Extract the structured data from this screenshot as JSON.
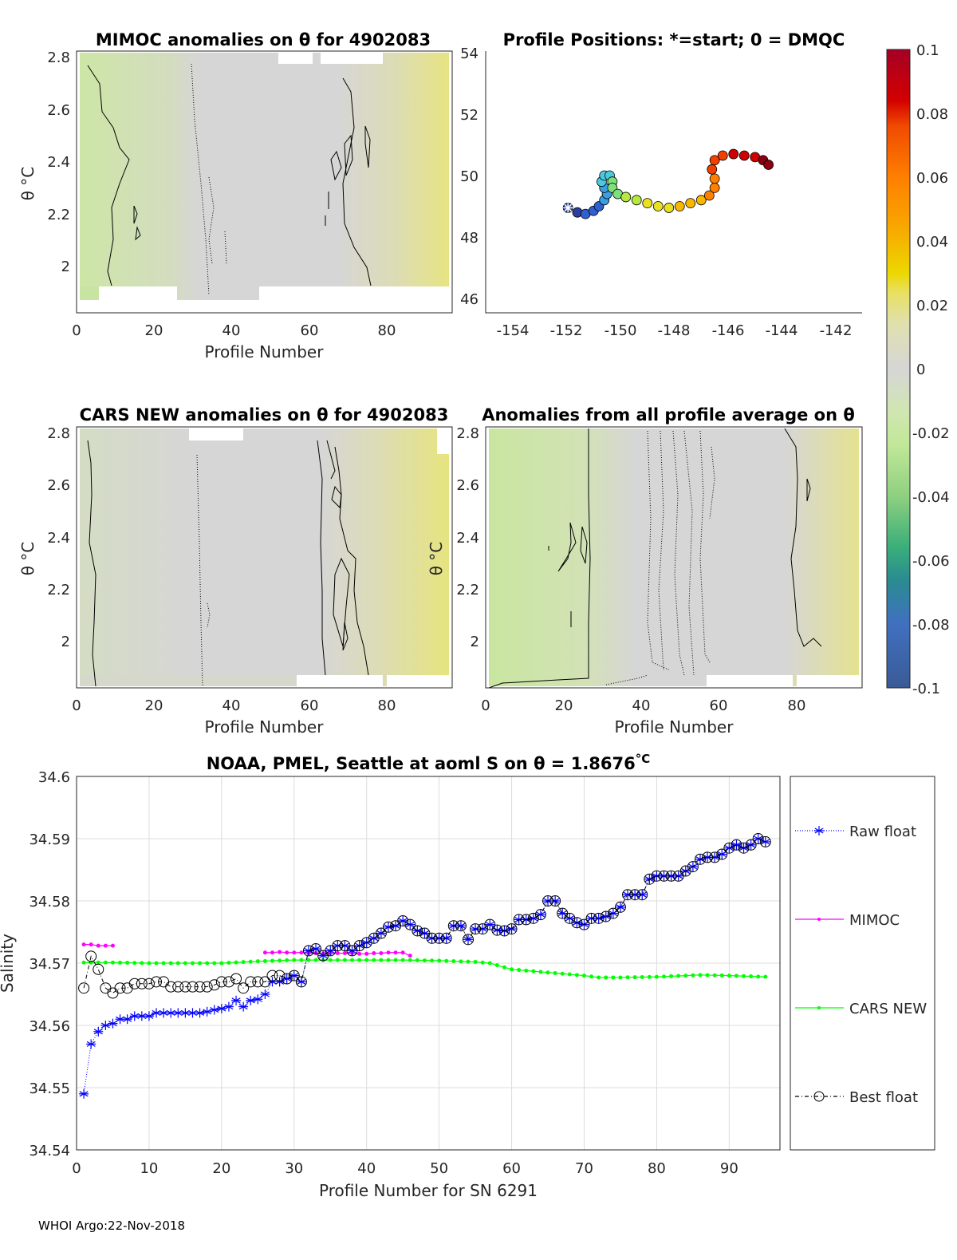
{
  "panels": {
    "mimoc": {
      "title": "MIMOC anomalies on θ  for 4902083",
      "xlabel": "Profile Number",
      "ylabel": "θ °C"
    },
    "positions": {
      "title": "Profile Positions: *=start; 0 = DMQC"
    },
    "cars": {
      "title": "CARS NEW anomalies on θ for 4902083",
      "xlabel": "Profile Number",
      "ylabel": "θ °C"
    },
    "allavg": {
      "title": "Anomalies from all profile average on θ",
      "xlabel": "Profile Number",
      "ylabel": "θ °C"
    }
  },
  "axes": {
    "profile_ticks": [
      "0",
      "20",
      "40",
      "60",
      "80"
    ],
    "theta_ticks": [
      "2.8",
      "2.6",
      "2.4",
      "2.2",
      "2"
    ],
    "lon_ticks": [
      "-154",
      "-152",
      "-150",
      "-148",
      "-146",
      "-144",
      "-142"
    ],
    "lat_ticks": [
      "54",
      "52",
      "50",
      "48",
      "46"
    ]
  },
  "colorbar": {
    "ticks": [
      "0.1",
      "0.08",
      "0.06",
      "0.04",
      "0.02",
      "0",
      "-0.02",
      "-0.04",
      "-0.06",
      "-0.08",
      "-0.1"
    ],
    "colors": {
      "max": "#a50026",
      "orange": "#ff7f00",
      "yellow": "#ecd800",
      "zero": "#d6d6d6",
      "lightgreen": "#c0e898",
      "green": "#3aae7a",
      "blue": "#4070c0",
      "min": "#3a5a96"
    }
  },
  "chart_data": [
    {
      "type": "scatter",
      "title": "Profile Positions: *=start; 0 = DMQC",
      "xlim": [
        -155,
        -141
      ],
      "ylim": [
        45.5,
        54
      ],
      "lon": [
        -151.95,
        -151.6,
        -151.3,
        -151.0,
        -150.8,
        -150.6,
        -150.5,
        -150.6,
        -150.7,
        -150.6,
        -150.4,
        -150.3,
        -150.3,
        -150.1,
        -149.8,
        -149.4,
        -149.0,
        -148.6,
        -148.2,
        -147.8,
        -147.4,
        -147.0,
        -146.7,
        -146.5,
        -146.5,
        -146.6,
        -146.5,
        -146.2,
        -145.8,
        -145.4,
        -145.0,
        -144.7,
        -144.5
      ],
      "lat": [
        48.95,
        48.8,
        48.75,
        48.85,
        49.0,
        49.2,
        49.4,
        49.6,
        49.8,
        50.0,
        50.0,
        49.8,
        49.6,
        49.4,
        49.3,
        49.2,
        49.1,
        49.0,
        48.95,
        49.0,
        49.1,
        49.2,
        49.35,
        49.6,
        49.9,
        50.2,
        50.5,
        50.65,
        50.7,
        50.65,
        50.6,
        50.5,
        50.35
      ]
    },
    {
      "type": "line",
      "title": "NOAA, PMEL, Seattle at aoml S on θ = 1.8676",
      "title_unit": "°C",
      "xlabel": "Profile Number for SN 6291",
      "ylabel": "Salinity",
      "xlim": [
        0,
        97
      ],
      "ylim": [
        34.54,
        34.6
      ],
      "xticks": [
        "0",
        "10",
        "20",
        "30",
        "40",
        "50",
        "60",
        "70",
        "80",
        "90"
      ],
      "yticks": [
        "34.6",
        "34.59",
        "34.58",
        "34.57",
        "34.56",
        "34.55",
        "34.54"
      ],
      "grid": true,
      "legend_placement": "outside-right",
      "series": [
        {
          "name": "Raw float",
          "color": "#0000ff",
          "x_start": 1,
          "values": [
            34.549,
            34.557,
            34.559,
            34.56,
            34.5603,
            34.561,
            34.561,
            34.5615,
            34.5615,
            34.5615,
            34.562,
            34.562,
            34.562,
            34.562,
            34.562,
            34.562,
            34.562,
            34.5622,
            34.5625,
            34.5627,
            34.563,
            34.564,
            34.563,
            34.564,
            34.5642,
            34.565,
            34.567,
            34.567,
            34.5675,
            34.568,
            34.567,
            34.572,
            34.5723,
            34.5712,
            34.572,
            34.5728,
            34.5728,
            34.572,
            34.5728,
            34.5733,
            34.574,
            34.5748,
            34.5758,
            34.576,
            34.5768,
            34.5762,
            34.5752,
            34.5748,
            34.574,
            34.574,
            34.574,
            34.576,
            34.576,
            34.5738,
            34.5755,
            34.5755,
            34.5762,
            34.5753,
            34.5752,
            34.5755,
            34.577,
            34.577,
            34.5772,
            34.5778,
            34.58,
            34.58,
            34.578,
            34.5772,
            34.5765,
            34.5762,
            34.5772,
            34.5772,
            34.5775,
            34.578,
            34.579,
            34.581,
            34.581,
            34.581,
            34.5835,
            34.584,
            34.584,
            34.584,
            34.584,
            34.5848,
            34.5855,
            34.5867,
            34.587,
            34.587,
            34.5875,
            34.5885,
            34.589,
            34.5885,
            34.589,
            34.59,
            34.5895
          ]
        },
        {
          "name": "MIMOC",
          "color": "#ff00ff",
          "x": [
            1,
            2,
            3,
            4,
            5,
            26,
            27,
            28,
            29,
            30,
            31,
            32,
            33,
            34,
            35,
            36,
            37,
            38,
            39,
            40,
            41,
            42,
            43,
            44,
            45,
            46
          ],
          "values": [
            34.573,
            34.573,
            34.5728,
            34.5728,
            34.5728,
            34.5717,
            34.5717,
            34.5718,
            34.5717,
            34.5717,
            34.5717,
            34.5716,
            34.5716,
            34.5715,
            34.5716,
            34.5716,
            34.5716,
            34.5716,
            34.5715,
            34.5715,
            34.5716,
            34.5716,
            34.5717,
            34.5717,
            34.5717,
            34.5712
          ]
        },
        {
          "name": "CARS NEW",
          "color": "#00ff00",
          "x": [
            1,
            5,
            10,
            15,
            20,
            25,
            30,
            35,
            40,
            45,
            50,
            55,
            57,
            60,
            65,
            70,
            72,
            75,
            80,
            86,
            90,
            95
          ],
          "values": [
            34.5701,
            34.5701,
            34.57,
            34.57,
            34.57,
            34.5703,
            34.5705,
            34.5705,
            34.5705,
            34.5705,
            34.5704,
            34.5702,
            34.57,
            34.569,
            34.5685,
            34.568,
            34.5677,
            34.5677,
            34.5678,
            34.5681,
            34.568,
            34.5678
          ]
        },
        {
          "name": "Best float",
          "color": "#000000",
          "x_start": 1,
          "values": [
            34.566,
            34.5711,
            34.569,
            34.566,
            34.5652,
            34.566,
            34.566,
            34.5667,
            34.5667,
            34.5667,
            34.567,
            34.567,
            34.5662,
            34.5662,
            34.5662,
            34.5662,
            34.5662,
            34.5662,
            34.5665,
            34.567,
            34.567,
            34.5675,
            34.566,
            34.567,
            34.567,
            34.567,
            34.568,
            34.568,
            34.5675,
            34.568,
            34.567,
            34.572,
            34.5723,
            34.5712,
            34.572,
            34.5728,
            34.5728,
            34.572,
            34.5728,
            34.5733,
            34.574,
            34.5748,
            34.5758,
            34.576,
            34.5768,
            34.5762,
            34.5752,
            34.5748,
            34.574,
            34.574,
            34.574,
            34.576,
            34.576,
            34.5738,
            34.5755,
            34.5755,
            34.5762,
            34.5753,
            34.5752,
            34.5755,
            34.577,
            34.577,
            34.5772,
            34.5778,
            34.58,
            34.58,
            34.578,
            34.5772,
            34.5765,
            34.5762,
            34.5772,
            34.5772,
            34.5775,
            34.578,
            34.579,
            34.581,
            34.581,
            34.581,
            34.5835,
            34.584,
            34.584,
            34.584,
            34.584,
            34.5848,
            34.5855,
            34.5867,
            34.587,
            34.587,
            34.5875,
            34.5885,
            34.589,
            34.5885,
            34.589,
            34.59,
            34.5895
          ]
        }
      ]
    }
  ],
  "footer": "WHOI Argo:22-Nov-2018"
}
